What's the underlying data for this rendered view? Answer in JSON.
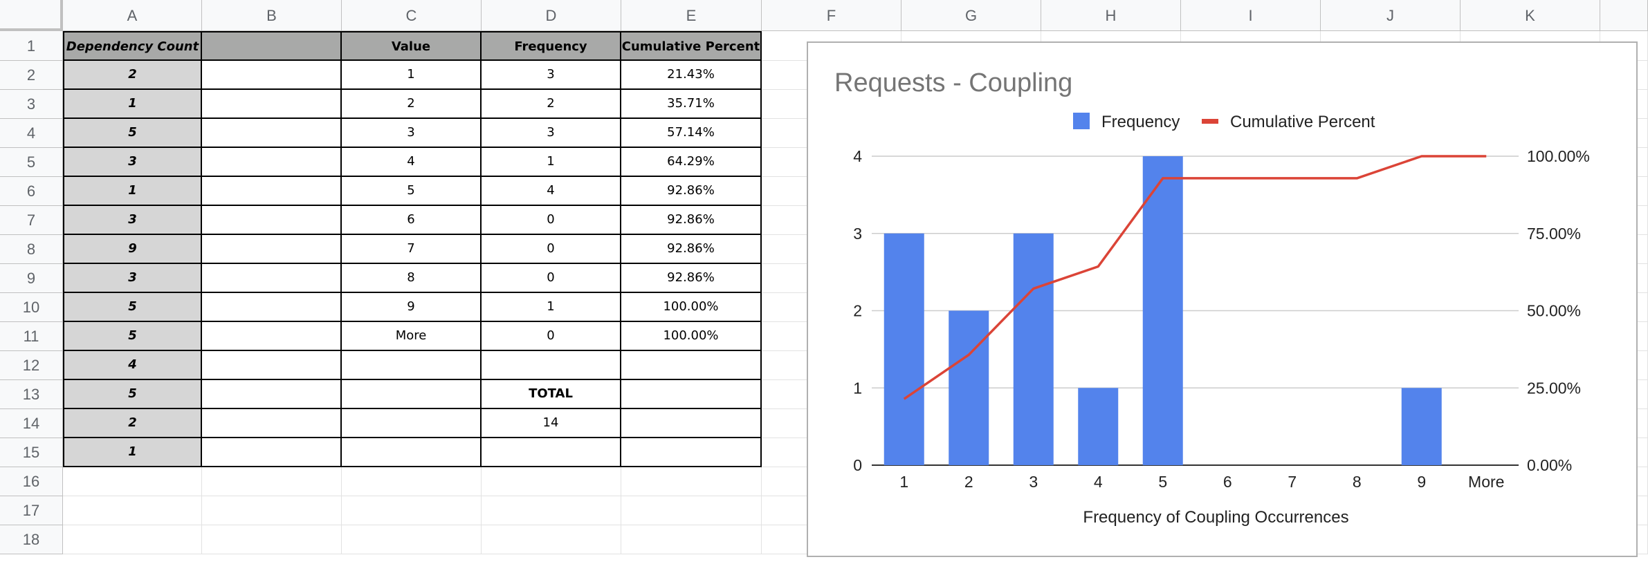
{
  "columns": [
    "A",
    "B",
    "C",
    "D",
    "E",
    "F",
    "G",
    "H",
    "I",
    "J",
    "K"
  ],
  "rows": [
    "1",
    "2",
    "3",
    "4",
    "5",
    "6",
    "7",
    "8",
    "9",
    "10",
    "11",
    "12",
    "13",
    "14",
    "15",
    "16",
    "17",
    "18"
  ],
  "table": {
    "headers": {
      "a": "Dependency Count",
      "c": "Value",
      "d": "Frequency",
      "e": "Cumulative Percent"
    },
    "dependency_counts": [
      "2",
      "1",
      "5",
      "3",
      "1",
      "3",
      "9",
      "3",
      "5",
      "5",
      "4",
      "5",
      "2",
      "1"
    ],
    "bins": [
      {
        "value": "1",
        "frequency": "3",
        "cumulative": "21.43%"
      },
      {
        "value": "2",
        "frequency": "2",
        "cumulative": "35.71%"
      },
      {
        "value": "3",
        "frequency": "3",
        "cumulative": "57.14%"
      },
      {
        "value": "4",
        "frequency": "1",
        "cumulative": "64.29%"
      },
      {
        "value": "5",
        "frequency": "4",
        "cumulative": "92.86%"
      },
      {
        "value": "6",
        "frequency": "0",
        "cumulative": "92.86%"
      },
      {
        "value": "7",
        "frequency": "0",
        "cumulative": "92.86%"
      },
      {
        "value": "8",
        "frequency": "0",
        "cumulative": "92.86%"
      },
      {
        "value": "9",
        "frequency": "1",
        "cumulative": "100.00%"
      },
      {
        "value": "More",
        "frequency": "0",
        "cumulative": "100.00%"
      }
    ],
    "total_label": "TOTAL",
    "total_value": "14"
  },
  "chart_data": {
    "type": "bar",
    "title": "Requests - Coupling",
    "categories": [
      "1",
      "2",
      "3",
      "4",
      "5",
      "6",
      "7",
      "8",
      "9",
      "More"
    ],
    "series": [
      {
        "name": "Frequency",
        "type": "bar",
        "axis": "left",
        "color": "#5383ec",
        "values": [
          3,
          2,
          3,
          1,
          4,
          0,
          0,
          0,
          1,
          0
        ]
      },
      {
        "name": "Cumulative Percent",
        "type": "line",
        "axis": "right",
        "color": "#db4437",
        "values": [
          21.43,
          35.71,
          57.14,
          64.29,
          92.86,
          92.86,
          92.86,
          92.86,
          100.0,
          100.0
        ]
      }
    ],
    "xlabel": "Frequency of Coupling Occurrences",
    "ylabel": "",
    "ylim": [
      0,
      4
    ],
    "y_ticks": [
      "0",
      "1",
      "2",
      "3",
      "4"
    ],
    "y2lim": [
      0,
      100
    ],
    "y2_ticks": [
      "0.00%",
      "25.00%",
      "50.00%",
      "75.00%",
      "100.00%"
    ],
    "grid": true,
    "legend": "top-center"
  }
}
